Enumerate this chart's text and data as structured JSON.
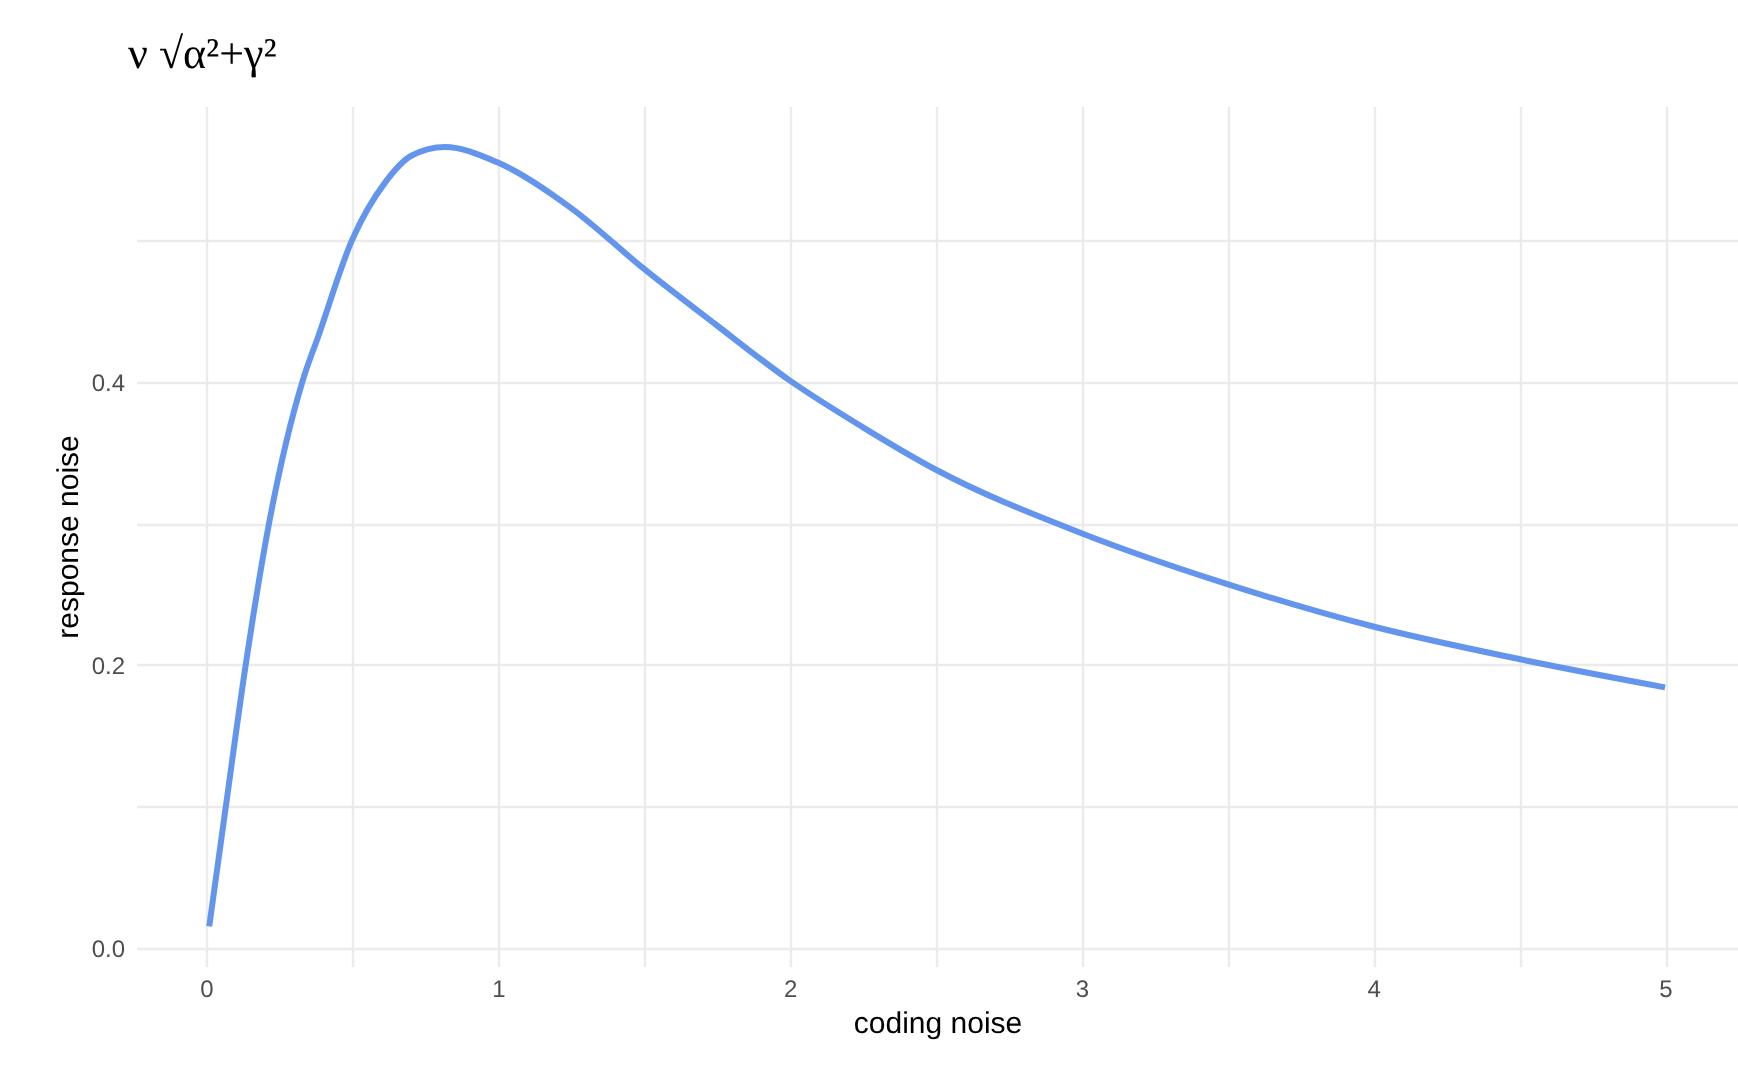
{
  "chart_data": {
    "type": "line",
    "title": "ν √α²+γ²",
    "xlabel": "coding noise",
    "ylabel": "response noise",
    "x": [
      0.011,
      0.068,
      0.136,
      0.216,
      0.33,
      0.386,
      0.5,
      0.614,
      0.705,
      0.818,
      1.0,
      1.25,
      1.5,
      1.75,
      2.0,
      2.25,
      2.5,
      3.0,
      3.5,
      4.0,
      4.5,
      5.0
    ],
    "series": [
      {
        "color": "#6495ed",
        "values": [
          0.015,
          0.1,
          0.2,
          0.3,
          0.4,
          0.433,
          0.5,
          0.541,
          0.56,
          0.566,
          0.555,
          0.523,
          0.48,
          0.44,
          0.401,
          0.368,
          0.338,
          0.293,
          0.257,
          0.227,
          0.204,
          0.184
        ]
      }
    ],
    "xlim": [
      -0.24,
      5.25
    ],
    "ylim": [
      -0.013,
      0.595
    ],
    "xticks": [
      0,
      {
        "value": 0.5,
        "label": null
      },
      1,
      {
        "value": 1.5,
        "label": null
      },
      2,
      {
        "value": 2.5,
        "label": null
      },
      3,
      {
        "value": 3.5,
        "label": null
      },
      4,
      {
        "value": 4.5,
        "label": null
      },
      5
    ],
    "yticks": [
      {
        "value": 0,
        "label": "0.0"
      },
      {
        "value": 0.1,
        "label": null
      },
      0.2,
      {
        "value": 0.3,
        "label": null
      },
      0.4,
      {
        "value": 0.5,
        "label": null
      }
    ],
    "grid": true,
    "marker": "none",
    "line_style": "solid"
  }
}
